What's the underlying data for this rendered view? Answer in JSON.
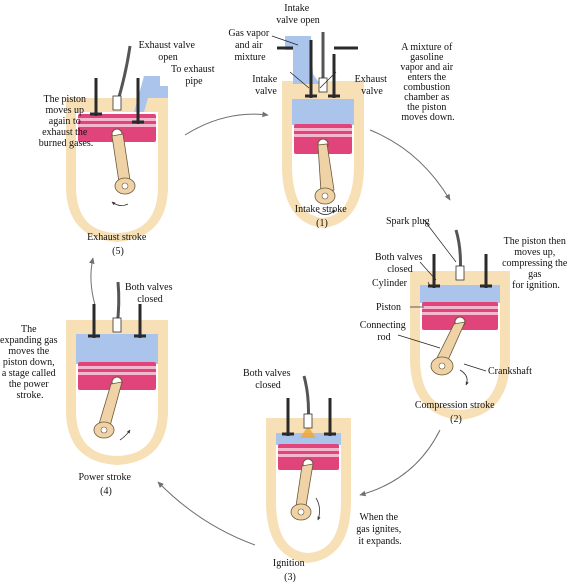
{
  "colors": {
    "wall": "#f7dfb6",
    "chamber": "#ffffff",
    "mixture": "#aac4ec",
    "piston": "#e0447a",
    "piston_light": "#f3b8cd",
    "rod": "#efd3a7",
    "rod_stroke": "#6b5838",
    "valve": "#2a2a2a",
    "spark": "#f3a72a",
    "arrow": "#6f6f6f"
  },
  "icons": [
    "piston-icon",
    "valve-icon",
    "spark-plug-icon",
    "crankshaft-icon",
    "rotation-arrow-icon",
    "cycle-arrow-icon"
  ],
  "stages": {
    "intake": {
      "name": "Intake stroke",
      "number": "(1)",
      "valve_open": [
        "Intake",
        "valve open"
      ],
      "gas": [
        "Gas vapor",
        "and air",
        "mixture"
      ],
      "intake_valve": [
        "Intake",
        "valve"
      ],
      "exhaust_valve": [
        "Exhaust",
        "valve"
      ],
      "desc": [
        "A mixture of",
        "gasoline",
        "vapor and air",
        "enters the",
        "combustion",
        "chamber as",
        "the piston",
        "moves down."
      ]
    },
    "compression": {
      "name": "Compression stroke",
      "number": "(2)",
      "spark_plug": "Spark plug",
      "valves": [
        "Both valves",
        "closed"
      ],
      "cylinder": "Cylinder",
      "piston": "Piston",
      "rod": [
        "Connecting",
        "rod"
      ],
      "crankshaft": "Crankshaft",
      "desc": [
        "The piston then",
        "moves up,",
        "compressing the",
        "gas",
        "for ignition."
      ]
    },
    "ignition": {
      "name": "Ignition",
      "number": "(3)",
      "valves": [
        "Both valves",
        "closed"
      ],
      "desc": [
        "When the",
        "gas ignites,",
        "it expands."
      ]
    },
    "power": {
      "name": "Power stroke",
      "number": "(4)",
      "valves": [
        "Both valves",
        "closed"
      ],
      "desc": [
        "The",
        "expanding gas",
        "moves the",
        "piston down,",
        "a stage called",
        "the power",
        "stroke."
      ]
    },
    "exhaust": {
      "name": "Exhaust stroke",
      "number": "(5)",
      "valve_open": [
        "Exhaust valve",
        "open"
      ],
      "pipe": [
        "To exhaust",
        "pipe"
      ],
      "desc": [
        "The piston",
        "moves up",
        "again to",
        "exhaust the",
        "burned gases."
      ]
    }
  }
}
